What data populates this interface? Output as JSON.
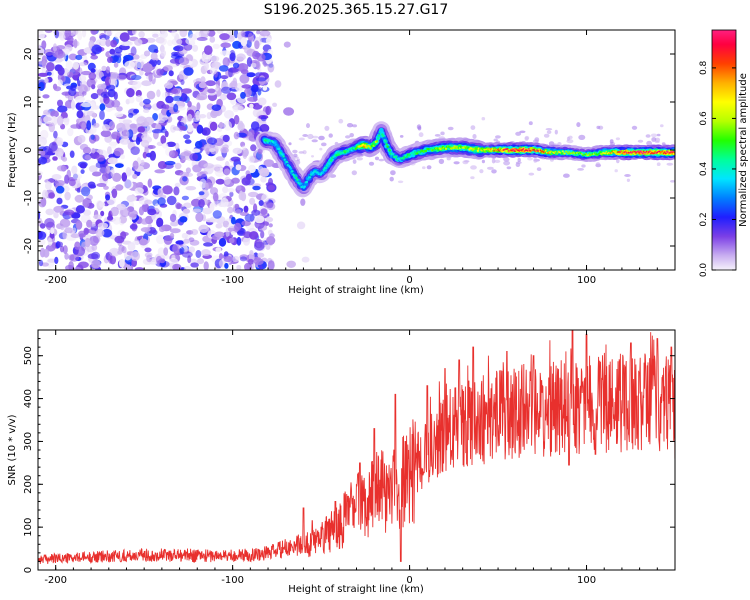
{
  "page": {
    "title": "S196.2025.365.15.27.G17"
  },
  "chart_data": [
    {
      "type": "heatmap",
      "title": "S196.2025.365.15.27.G17",
      "xlabel": "Height of straight line (km)",
      "ylabel": "Frequency (Hz)",
      "xlim": [
        -210,
        150
      ],
      "ylim": [
        -25,
        25
      ],
      "xticks": [
        -200,
        -100,
        0,
        100
      ],
      "yticks": [
        -20,
        -10,
        0,
        10,
        20
      ],
      "colorbar": {
        "label": "Normalized spectral amplitude",
        "range": [
          0.0,
          0.95
        ],
        "ticks": [
          0.0,
          0.2,
          0.4,
          0.6,
          0.8
        ]
      },
      "ridge": {
        "x": [
          -82,
          -76,
          -72,
          -68,
          -64,
          -60,
          -58,
          -54,
          -50,
          -46,
          -42,
          -38,
          -34,
          -30,
          -26,
          -22,
          -19,
          -16,
          -13,
          -10,
          -6,
          0,
          10,
          20,
          30,
          40,
          50,
          60,
          70,
          80,
          90,
          100,
          110,
          120,
          130,
          140,
          150
        ],
        "y": [
          2,
          1.5,
          -1,
          -3.5,
          -6,
          -8,
          -6.5,
          -4.5,
          -5,
          -3,
          -1,
          -0.5,
          0,
          0.5,
          1,
          0.5,
          1.5,
          4,
          1,
          -1,
          -2,
          -1,
          0,
          0.5,
          0.5,
          0,
          0,
          0,
          0,
          -0.5,
          -0.5,
          -1,
          -0.5,
          -0.5,
          -0.5,
          -0.5,
          -0.5
        ],
        "amplitude": [
          0.45,
          0.35,
          0.4,
          0.35,
          0.4,
          0.35,
          0.35,
          0.4,
          0.35,
          0.4,
          0.45,
          0.45,
          0.4,
          0.45,
          0.75,
          0.5,
          0.55,
          0.4,
          0.45,
          0.45,
          0.4,
          0.45,
          0.5,
          0.55,
          0.55,
          0.6,
          0.75,
          0.95,
          0.85,
          0.65,
          0.55,
          0.55,
          0.6,
          0.85,
          0.9,
          0.9,
          0.9
        ]
      },
      "noise_region_x": [
        -210,
        -78
      ]
    },
    {
      "type": "line",
      "xlabel": "Height of straight line (km)",
      "ylabel": "SNR (10 * v/v)",
      "xlim": [
        -210,
        150
      ],
      "ylim": [
        0,
        560
      ],
      "xticks": [
        -200,
        -100,
        0,
        100
      ],
      "yticks": [
        0,
        100,
        200,
        300,
        400,
        500
      ],
      "series": [
        {
          "name": "SNR",
          "color": "#e8302d",
          "x": [
            -210,
            -190,
            -170,
            -150,
            -130,
            -110,
            -90,
            -80,
            -70,
            -60,
            -55,
            -50,
            -45,
            -40,
            -35,
            -30,
            -25,
            -20,
            -15,
            -10,
            -5,
            0,
            5,
            10,
            15,
            20,
            30,
            40,
            50,
            60,
            70,
            80,
            90,
            100,
            110,
            120,
            130,
            140,
            150
          ],
          "y": [
            25,
            28,
            32,
            35,
            35,
            33,
            35,
            40,
            50,
            60,
            70,
            70,
            90,
            100,
            130,
            150,
            160,
            175,
            185,
            190,
            200,
            215,
            250,
            270,
            300,
            320,
            340,
            350,
            360,
            370,
            370,
            375,
            380,
            385,
            390,
            390,
            390,
            385,
            380
          ],
          "spikes": [
            {
              "x": -60,
              "y": 145
            },
            {
              "x": -55,
              "y": 115
            },
            {
              "x": -42,
              "y": 160
            },
            {
              "x": -28,
              "y": 250
            },
            {
              "x": -20,
              "y": 330
            },
            {
              "x": -8,
              "y": 410
            },
            {
              "x": 10,
              "y": 430
            },
            {
              "x": 20,
              "y": 470
            },
            {
              "x": 28,
              "y": 490
            },
            {
              "x": 36,
              "y": 520
            },
            {
              "x": 55,
              "y": 510
            },
            {
              "x": 70,
              "y": 500
            },
            {
              "x": 92,
              "y": 560
            },
            {
              "x": 100,
              "y": 550
            },
            {
              "x": 125,
              "y": 530
            },
            {
              "x": 140,
              "y": 540
            },
            {
              "x": 148,
              "y": 520
            }
          ],
          "dips": [
            {
              "x": -5,
              "y": 20
            },
            {
              "x": 90,
              "y": 245
            },
            {
              "x": 105,
              "y": 270
            },
            {
              "x": 150,
              "y": 260
            }
          ]
        }
      ]
    }
  ]
}
